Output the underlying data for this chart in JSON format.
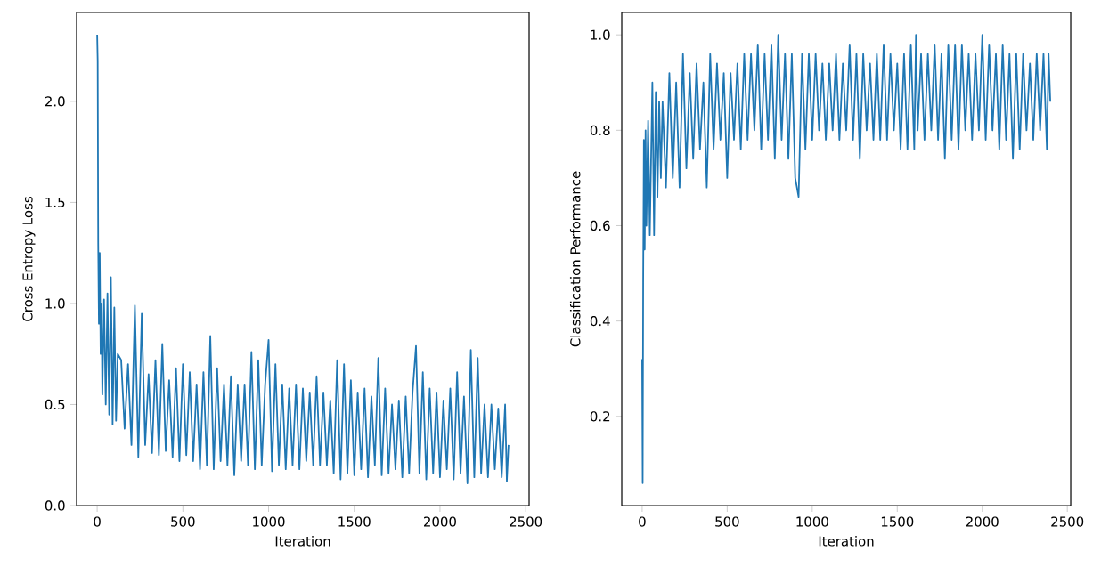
{
  "chart_data": [
    {
      "type": "line",
      "xlabel": "Iteration",
      "ylabel": "Cross Entropy Loss",
      "xlim": [
        -120,
        2520
      ],
      "ylim": [
        0,
        2.44
      ],
      "xticks": [
        0,
        500,
        1000,
        1500,
        2000,
        2500
      ],
      "yticks": [
        {
          "value": 0,
          "label": "0.0"
        },
        {
          "value": 0.5,
          "label": "0.5"
        },
        {
          "value": 1,
          "label": "1.0"
        },
        {
          "value": 1.5,
          "label": "1.5"
        },
        {
          "value": 2,
          "label": "2.0"
        }
      ],
      "grid": false,
      "marker": "none",
      "line_style": "solid",
      "series": [
        {
          "color": "#1f77b4",
          "x": [
            0,
            3,
            6,
            10,
            15,
            20,
            25,
            30,
            40,
            50,
            60,
            70,
            80,
            90,
            100,
            110,
            120,
            140,
            160,
            180,
            200,
            220,
            240,
            260,
            280,
            300,
            320,
            340,
            360,
            380,
            400,
            420,
            440,
            460,
            480,
            500,
            520,
            540,
            560,
            580,
            600,
            620,
            640,
            660,
            680,
            700,
            720,
            740,
            760,
            780,
            800,
            820,
            840,
            860,
            880,
            900,
            920,
            940,
            960,
            980,
            1000,
            1020,
            1040,
            1060,
            1080,
            1100,
            1120,
            1140,
            1160,
            1180,
            1200,
            1220,
            1240,
            1260,
            1280,
            1300,
            1320,
            1340,
            1360,
            1380,
            1400,
            1420,
            1440,
            1460,
            1480,
            1500,
            1520,
            1540,
            1560,
            1580,
            1600,
            1620,
            1640,
            1660,
            1680,
            1700,
            1720,
            1740,
            1760,
            1780,
            1800,
            1820,
            1840,
            1860,
            1880,
            1900,
            1920,
            1940,
            1960,
            1980,
            2000,
            2020,
            2040,
            2060,
            2080,
            2100,
            2120,
            2140,
            2160,
            2180,
            2200,
            2220,
            2240,
            2260,
            2280,
            2300,
            2320,
            2340,
            2360,
            2380,
            2390,
            2400
          ],
          "values": [
            2.33,
            2.2,
            1.3,
            0.9,
            1.25,
            0.75,
            1.0,
            0.55,
            1.02,
            0.5,
            1.05,
            0.45,
            1.13,
            0.4,
            0.98,
            0.42,
            0.75,
            0.72,
            0.38,
            0.7,
            0.3,
            0.99,
            0.24,
            0.95,
            0.3,
            0.65,
            0.26,
            0.72,
            0.25,
            0.8,
            0.27,
            0.62,
            0.24,
            0.68,
            0.22,
            0.7,
            0.25,
            0.66,
            0.22,
            0.6,
            0.18,
            0.66,
            0.2,
            0.84,
            0.18,
            0.68,
            0.22,
            0.6,
            0.2,
            0.64,
            0.15,
            0.6,
            0.22,
            0.6,
            0.2,
            0.76,
            0.18,
            0.72,
            0.2,
            0.6,
            0.82,
            0.17,
            0.7,
            0.2,
            0.6,
            0.18,
            0.58,
            0.2,
            0.6,
            0.18,
            0.58,
            0.22,
            0.56,
            0.2,
            0.64,
            0.2,
            0.56,
            0.2,
            0.52,
            0.16,
            0.72,
            0.13,
            0.7,
            0.16,
            0.62,
            0.15,
            0.56,
            0.18,
            0.58,
            0.14,
            0.54,
            0.2,
            0.73,
            0.15,
            0.58,
            0.16,
            0.5,
            0.18,
            0.52,
            0.14,
            0.54,
            0.16,
            0.56,
            0.79,
            0.16,
            0.66,
            0.13,
            0.58,
            0.16,
            0.56,
            0.14,
            0.52,
            0.18,
            0.58,
            0.13,
            0.66,
            0.16,
            0.54,
            0.11,
            0.77,
            0.14,
            0.73,
            0.16,
            0.5,
            0.14,
            0.5,
            0.18,
            0.48,
            0.14,
            0.5,
            0.12,
            0.3
          ]
        }
      ]
    },
    {
      "type": "line",
      "xlabel": "Iteration",
      "ylabel": "Classification Performance",
      "xlim": [
        -120,
        2520
      ],
      "ylim": [
        0.013,
        1.047
      ],
      "xticks": [
        0,
        500,
        1000,
        1500,
        2000,
        2500
      ],
      "yticks": [
        {
          "value": 0.2,
          "label": "0.2"
        },
        {
          "value": 0.4,
          "label": "0.4"
        },
        {
          "value": 0.6,
          "label": "0.6"
        },
        {
          "value": 0.8,
          "label": "0.8"
        },
        {
          "value": 1,
          "label": "1.0"
        }
      ],
      "grid": false,
      "marker": "none",
      "line_style": "solid",
      "series": [
        {
          "color": "#1f77b4",
          "x": [
            0,
            3,
            6,
            10,
            15,
            20,
            25,
            35,
            45,
            60,
            70,
            80,
            90,
            100,
            110,
            120,
            140,
            160,
            180,
            200,
            220,
            240,
            260,
            280,
            300,
            320,
            340,
            360,
            380,
            400,
            420,
            440,
            460,
            480,
            500,
            520,
            540,
            560,
            580,
            600,
            620,
            640,
            660,
            680,
            700,
            720,
            740,
            760,
            780,
            800,
            820,
            840,
            860,
            880,
            900,
            920,
            940,
            960,
            980,
            1000,
            1020,
            1040,
            1060,
            1080,
            1100,
            1120,
            1140,
            1160,
            1180,
            1200,
            1220,
            1240,
            1260,
            1280,
            1300,
            1320,
            1340,
            1360,
            1380,
            1400,
            1420,
            1440,
            1460,
            1480,
            1500,
            1520,
            1540,
            1560,
            1580,
            1600,
            1610,
            1620,
            1640,
            1660,
            1680,
            1700,
            1720,
            1740,
            1760,
            1780,
            1800,
            1820,
            1840,
            1860,
            1880,
            1900,
            1920,
            1940,
            1960,
            1980,
            2000,
            2020,
            2040,
            2060,
            2080,
            2100,
            2120,
            2140,
            2160,
            2180,
            2200,
            2220,
            2240,
            2260,
            2280,
            2300,
            2320,
            2340,
            2360,
            2380,
            2390,
            2400
          ],
          "values": [
            0.32,
            0.06,
            0.48,
            0.78,
            0.55,
            0.8,
            0.6,
            0.82,
            0.58,
            0.9,
            0.58,
            0.88,
            0.66,
            0.86,
            0.7,
            0.86,
            0.68,
            0.92,
            0.7,
            0.9,
            0.68,
            0.96,
            0.72,
            0.92,
            0.74,
            0.94,
            0.76,
            0.9,
            0.68,
            0.96,
            0.76,
            0.94,
            0.78,
            0.92,
            0.7,
            0.92,
            0.78,
            0.94,
            0.76,
            0.96,
            0.78,
            0.96,
            0.8,
            0.98,
            0.76,
            0.96,
            0.78,
            0.98,
            0.74,
            1.0,
            0.78,
            0.96,
            0.74,
            0.96,
            0.7,
            0.66,
            0.96,
            0.76,
            0.96,
            0.78,
            0.96,
            0.8,
            0.94,
            0.78,
            0.94,
            0.8,
            0.96,
            0.78,
            0.94,
            0.8,
            0.98,
            0.78,
            0.96,
            0.74,
            0.96,
            0.8,
            0.94,
            0.78,
            0.96,
            0.78,
            0.98,
            0.78,
            0.96,
            0.8,
            0.94,
            0.76,
            0.96,
            0.76,
            0.98,
            0.76,
            1.0,
            0.8,
            0.96,
            0.78,
            0.96,
            0.8,
            0.98,
            0.78,
            0.96,
            0.74,
            0.98,
            0.78,
            0.98,
            0.76,
            0.98,
            0.8,
            0.96,
            0.78,
            0.96,
            0.8,
            1.0,
            0.78,
            0.98,
            0.8,
            0.96,
            0.76,
            0.98,
            0.78,
            0.96,
            0.74,
            0.96,
            0.76,
            0.96,
            0.8,
            0.94,
            0.78,
            0.96,
            0.8,
            0.96,
            0.76,
            0.96,
            0.86
          ]
        }
      ]
    }
  ]
}
